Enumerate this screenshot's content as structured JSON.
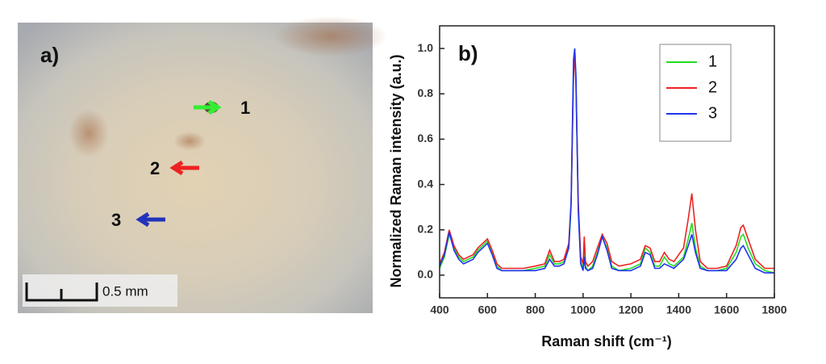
{
  "photo": {
    "label": "a)",
    "points": [
      "1",
      "2",
      "3"
    ],
    "scale_bar": "0.5 mm"
  },
  "chart_data": {
    "type": "line",
    "panel_label": "b)",
    "x_label": "Raman shift (cm⁻¹)",
    "y_label": "Normalized Raman intensity (a.u.)",
    "x": [
      400,
      420,
      440,
      460,
      480,
      500,
      520,
      540,
      560,
      580,
      600,
      620,
      640,
      660,
      700,
      750,
      800,
      840,
      860,
      880,
      900,
      920,
      940,
      950,
      960,
      965,
      970,
      980,
      990,
      1000,
      1005,
      1010,
      1020,
      1040,
      1060,
      1080,
      1100,
      1120,
      1150,
      1200,
      1240,
      1260,
      1280,
      1300,
      1320,
      1340,
      1360,
      1380,
      1400,
      1420,
      1440,
      1455,
      1470,
      1490,
      1520,
      1560,
      1600,
      1640,
      1660,
      1670,
      1690,
      1720,
      1760,
      1800
    ],
    "series": [
      {
        "name": "1",
        "color": "#22dd22",
        "values": [
          0.03,
          0.08,
          0.18,
          0.12,
          0.08,
          0.06,
          0.07,
          0.08,
          0.11,
          0.13,
          0.15,
          0.1,
          0.04,
          0.02,
          0.02,
          0.02,
          0.03,
          0.04,
          0.09,
          0.05,
          0.05,
          0.06,
          0.12,
          0.3,
          0.9,
          1.0,
          0.85,
          0.3,
          0.06,
          0.03,
          0.12,
          0.04,
          0.02,
          0.04,
          0.1,
          0.17,
          0.12,
          0.04,
          0.02,
          0.03,
          0.05,
          0.12,
          0.1,
          0.04,
          0.04,
          0.08,
          0.05,
          0.04,
          0.06,
          0.08,
          0.16,
          0.23,
          0.12,
          0.04,
          0.02,
          0.02,
          0.03,
          0.1,
          0.17,
          0.18,
          0.12,
          0.05,
          0.02,
          0.01
        ]
      },
      {
        "name": "2",
        "color": "#ee2222",
        "values": [
          0.05,
          0.1,
          0.2,
          0.13,
          0.09,
          0.07,
          0.08,
          0.09,
          0.12,
          0.14,
          0.16,
          0.11,
          0.05,
          0.03,
          0.03,
          0.03,
          0.04,
          0.05,
          0.11,
          0.06,
          0.06,
          0.07,
          0.14,
          0.32,
          0.88,
          0.98,
          0.84,
          0.32,
          0.08,
          0.05,
          0.17,
          0.06,
          0.04,
          0.06,
          0.12,
          0.18,
          0.14,
          0.06,
          0.04,
          0.05,
          0.07,
          0.13,
          0.12,
          0.06,
          0.06,
          0.1,
          0.07,
          0.06,
          0.09,
          0.12,
          0.25,
          0.36,
          0.2,
          0.06,
          0.03,
          0.03,
          0.04,
          0.13,
          0.21,
          0.22,
          0.16,
          0.07,
          0.03,
          0.03
        ]
      },
      {
        "name": "3",
        "color": "#2233ee",
        "values": [
          0.04,
          0.09,
          0.19,
          0.11,
          0.07,
          0.05,
          0.06,
          0.07,
          0.1,
          0.12,
          0.14,
          0.09,
          0.03,
          0.02,
          0.02,
          0.02,
          0.02,
          0.03,
          0.07,
          0.04,
          0.04,
          0.05,
          0.12,
          0.32,
          0.95,
          1.0,
          0.88,
          0.28,
          0.05,
          0.02,
          0.08,
          0.03,
          0.02,
          0.03,
          0.09,
          0.17,
          0.11,
          0.03,
          0.02,
          0.02,
          0.04,
          0.1,
          0.09,
          0.03,
          0.03,
          0.05,
          0.04,
          0.03,
          0.05,
          0.07,
          0.13,
          0.18,
          0.1,
          0.03,
          0.02,
          0.02,
          0.02,
          0.07,
          0.12,
          0.13,
          0.09,
          0.03,
          0.01,
          0.01
        ]
      }
    ],
    "xlim": [
      400,
      1800
    ],
    "xticks": [
      400,
      600,
      800,
      1000,
      1200,
      1400,
      1600,
      1800
    ],
    "ylim": [
      -0.1,
      1.1
    ],
    "yticks": [
      {
        "value": 0,
        "label": "0.0"
      },
      0.2,
      0.4,
      0.6,
      0.8,
      {
        "value": 1,
        "label": "1.0"
      }
    ],
    "legend": "upper right",
    "grid": false
  }
}
